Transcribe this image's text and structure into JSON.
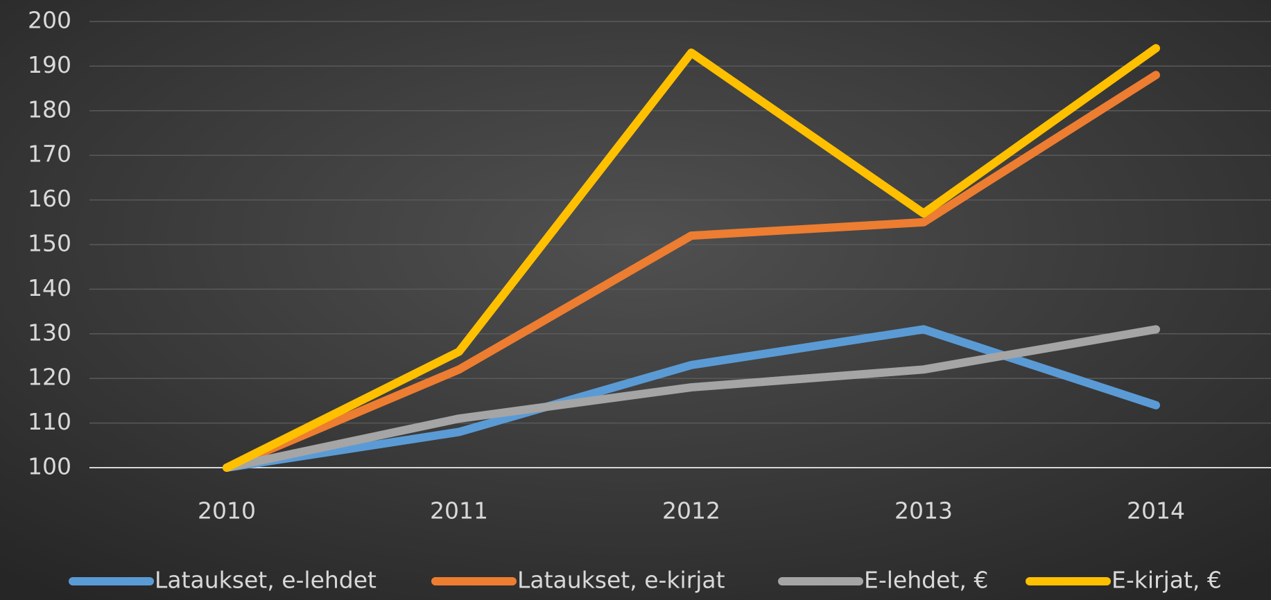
{
  "chart_data": {
    "type": "line",
    "categories": [
      "2010",
      "2011",
      "2012",
      "2013",
      "2014"
    ],
    "series": [
      {
        "name": "Lataukset, e-lehdet",
        "color": "#5b9bd5",
        "values": [
          100,
          108,
          123,
          131,
          114
        ]
      },
      {
        "name": "Lataukset, e-kirjat",
        "color": "#ed7d31",
        "values": [
          100,
          122,
          152,
          155,
          188
        ]
      },
      {
        "name": "E-lehdet, €",
        "color": "#a5a5a5",
        "values": [
          100,
          111,
          118,
          122,
          131
        ]
      },
      {
        "name": "E-kirjat, €",
        "color": "#ffc000",
        "values": [
          100,
          126,
          193,
          157,
          194
        ]
      }
    ],
    "ylim": [
      100,
      200
    ],
    "yticks": [
      100,
      110,
      120,
      130,
      140,
      150,
      160,
      170,
      180,
      190,
      200
    ],
    "grid": true,
    "legend": "bottom"
  }
}
